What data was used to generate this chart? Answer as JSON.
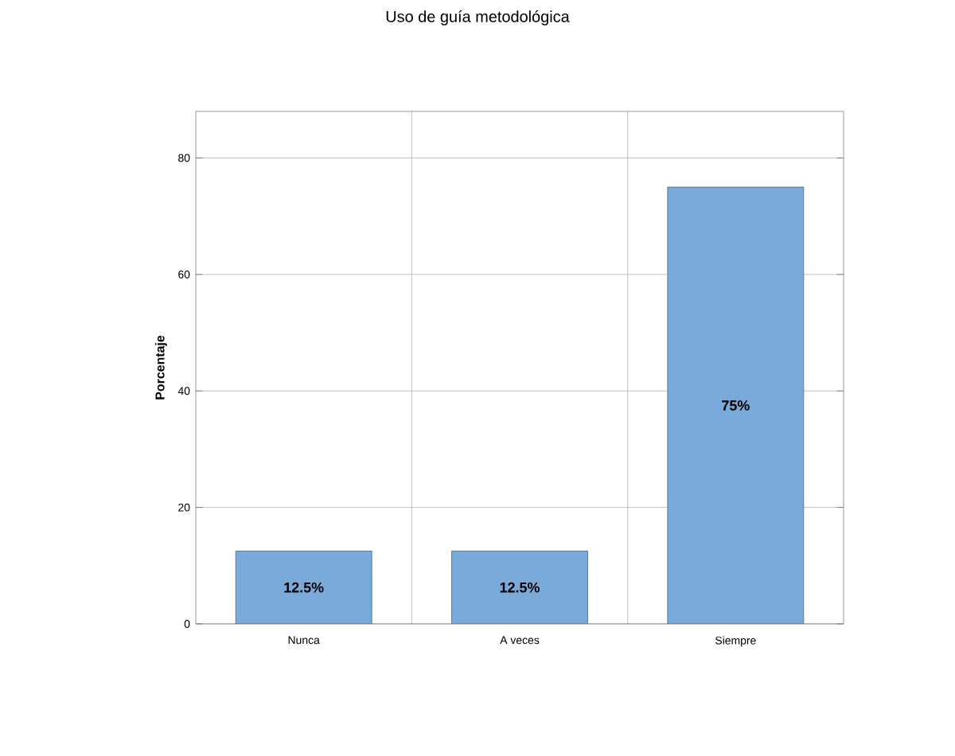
{
  "chart_data": {
    "type": "bar",
    "title": "Uso de guía metodológica",
    "ylabel": "Porcentaje",
    "categories": [
      "Nunca",
      "A veces",
      "Siempre"
    ],
    "values": [
      12.5,
      12.5,
      75
    ],
    "value_labels": [
      "12.5%",
      "12.5%",
      "75%"
    ],
    "color": "#7aaad9",
    "ylim": [
      0,
      88
    ],
    "yticks": [
      0,
      20,
      40,
      60,
      80
    ],
    "grid": true
  }
}
